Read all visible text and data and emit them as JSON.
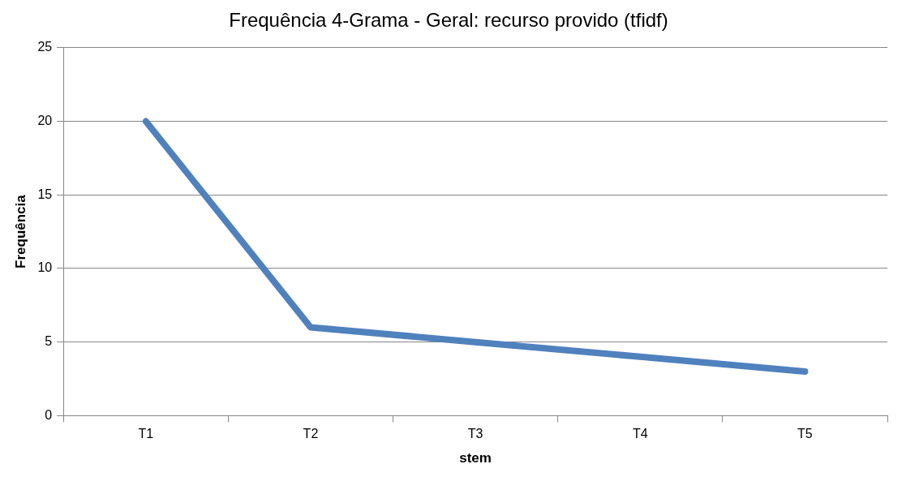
{
  "chart_data": {
    "type": "line",
    "title": "Frequência 4-Grama - Geral: recurso provido (tfidf)",
    "xlabel": "stem",
    "ylabel": "Frequência",
    "categories": [
      "T1",
      "T2",
      "T3",
      "T4",
      "T5"
    ],
    "series": [
      {
        "color": "#4f81bd",
        "values": [
          20,
          6,
          5,
          4,
          3
        ]
      }
    ],
    "ylim": [
      0,
      25
    ],
    "yticks": [
      0,
      5,
      10,
      15,
      20,
      25
    ],
    "grid": "y",
    "legend": false,
    "marker": "none",
    "line_style": "solid"
  }
}
